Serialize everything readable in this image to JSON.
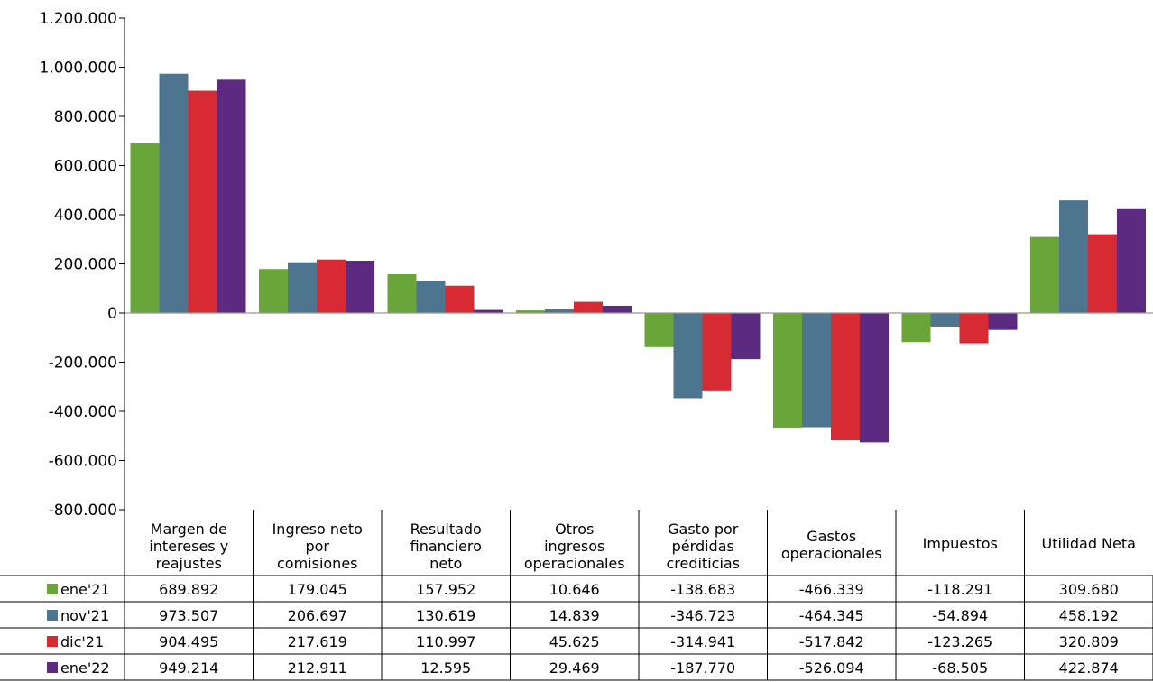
{
  "chart_data": {
    "type": "bar",
    "categories": [
      [
        "Margen de",
        "intereses y",
        "reajustes"
      ],
      [
        "Ingreso neto",
        "por",
        "comisiones"
      ],
      [
        "Resultado",
        "financiero",
        "neto"
      ],
      [
        "Otros",
        "ingresos",
        "operacionales"
      ],
      [
        "Gasto por",
        "pérdidas",
        "crediticias"
      ],
      [
        "Gastos",
        "operacionales"
      ],
      [
        "Impuestos"
      ],
      [
        "Utilidad Neta"
      ]
    ],
    "series": [
      {
        "name": "ene'21",
        "color": "#6aa53a",
        "values": [
          689892,
          179045,
          157952,
          10646,
          -138683,
          -466339,
          -118291,
          309680
        ],
        "labels": [
          "689.892",
          "179.045",
          "157.952",
          "10.646",
          "-138.683",
          "-466.339",
          "-118.291",
          "309.680"
        ]
      },
      {
        "name": "nov'21",
        "color": "#4e7590",
        "values": [
          973507,
          206697,
          130619,
          14839,
          -346723,
          -464345,
          -54894,
          458192
        ],
        "labels": [
          "973.507",
          "206.697",
          "130.619",
          "14.839",
          "-346.723",
          "-464.345",
          "-54.894",
          "458.192"
        ]
      },
      {
        "name": "dic'21",
        "color": "#d62b33",
        "values": [
          904495,
          217619,
          110997,
          45625,
          -314941,
          -517842,
          -123265,
          320809
        ],
        "labels": [
          "904.495",
          "217.619",
          "110.997",
          "45.625",
          "-314.941",
          "-517.842",
          "-123.265",
          "320.809"
        ]
      },
      {
        "name": "ene'22",
        "color": "#5d2a82",
        "values": [
          949214,
          212911,
          12595,
          29469,
          -187770,
          -526094,
          -68505,
          422874
        ],
        "labels": [
          "949.214",
          "212.911",
          "12.595",
          "29.469",
          "-187.770",
          "-526.094",
          "-68.505",
          "422.874"
        ]
      }
    ],
    "ylim": [
      -800000,
      1200000
    ],
    "yticks": [
      1200000,
      1000000,
      800000,
      600000,
      400000,
      200000,
      0,
      -200000,
      -400000,
      -600000,
      -800000
    ],
    "ytick_labels": [
      "1.200.000",
      "1.000.000",
      "800.000",
      "600.000",
      "400.000",
      "200.000",
      "0",
      "-200.000",
      "-400.000",
      "-600.000",
      "-800.000"
    ],
    "grid": false,
    "legend": "data-table-below"
  }
}
